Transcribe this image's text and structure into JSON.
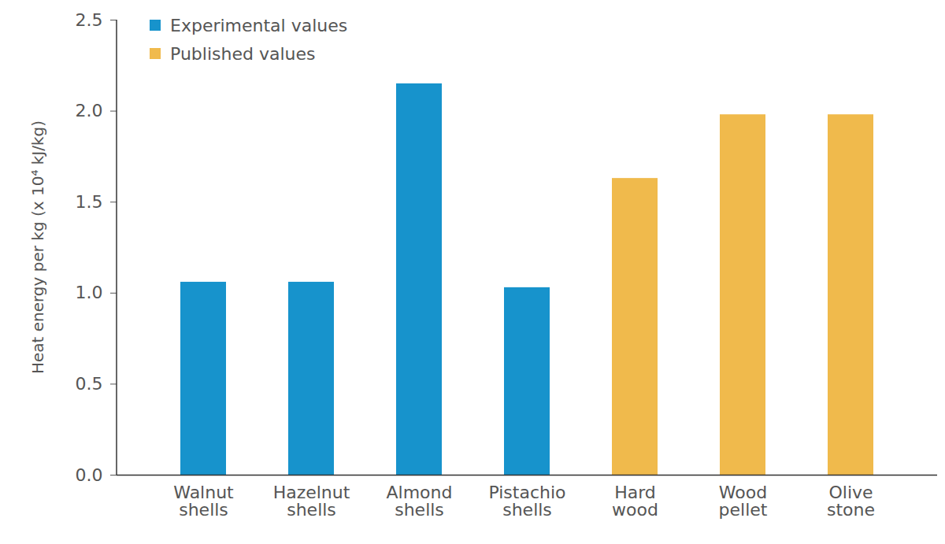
{
  "chart_data": {
    "type": "bar",
    "categories": [
      "Walnut shells",
      "Hazelnut shells",
      "Almond shells",
      "Pistachio shells",
      "Hard wood",
      "Wood pellet",
      "Olive stone"
    ],
    "series": [
      {
        "name": "Experimental values",
        "color": "#1793cc",
        "values": [
          1.06,
          1.06,
          2.15,
          1.03,
          null,
          null,
          null
        ]
      },
      {
        "name": "Published values",
        "color": "#f0ba4c",
        "values": [
          null,
          null,
          null,
          null,
          1.63,
          1.98,
          1.98
        ]
      }
    ],
    "y_label": "Heat energy per kg (x 10⁴ kJ/kg)",
    "ylim": [
      0,
      2.5
    ],
    "yticks": [
      0,
      0.5,
      1,
      1.5,
      2,
      2.5
    ],
    "legend": "upper left",
    "grid": false
  }
}
